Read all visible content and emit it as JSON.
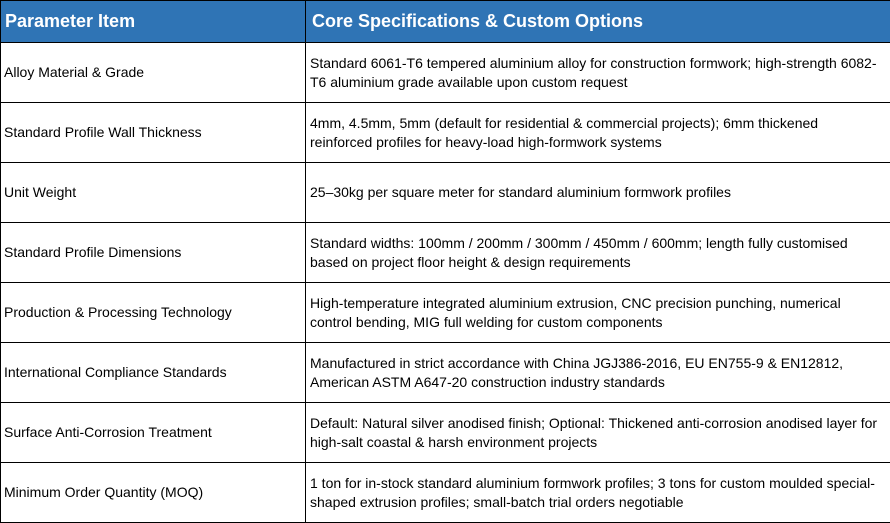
{
  "table": {
    "headers": [
      "Parameter Item",
      "Core Specifications & Custom Options"
    ],
    "rows": [
      {
        "param": "Alloy Material & Grade",
        "spec": "Standard 6061-T6 tempered aluminium alloy for construction formwork; high-strength 6082-T6 aluminium grade available upon custom request"
      },
      {
        "param": "Standard Profile Wall Thickness",
        "spec": "4mm, 4.5mm, 5mm (default for residential & commercial projects); 6mm thickened reinforced profiles for heavy-load high-formwork systems"
      },
      {
        "param": "Unit Weight",
        "spec": "25–30kg per square meter for standard aluminium formwork profiles"
      },
      {
        "param": "Standard Profile Dimensions",
        "spec": "Standard widths: 100mm / 200mm / 300mm / 450mm / 600mm; length fully customised based on project floor height & design requirements"
      },
      {
        "param": "Production & Processing Technology",
        "spec": "High-temperature integrated aluminium extrusion, CNC precision punching, numerical control bending, MIG full welding for custom components"
      },
      {
        "param": "International Compliance Standards",
        "spec": "Manufactured in strict accordance with China JGJ386-2016, EU EN755-9 & EN12812, American ASTM A647-20 construction industry standards"
      },
      {
        "param": "Surface Anti-Corrosion Treatment",
        "spec": "Default: Natural silver anodised finish; Optional: Thickened anti-corrosion anodised layer for high-salt coastal & harsh environment projects"
      },
      {
        "param": "Minimum Order Quantity (MOQ)",
        "spec": "1 ton for in-stock standard aluminium formwork profiles; 3 tons for custom moulded special-shaped extrusion profiles; small-batch trial orders negotiable"
      }
    ]
  },
  "colors": {
    "header_bg": "#2f74b5",
    "header_text": "#ffffff",
    "border": "#000000"
  }
}
